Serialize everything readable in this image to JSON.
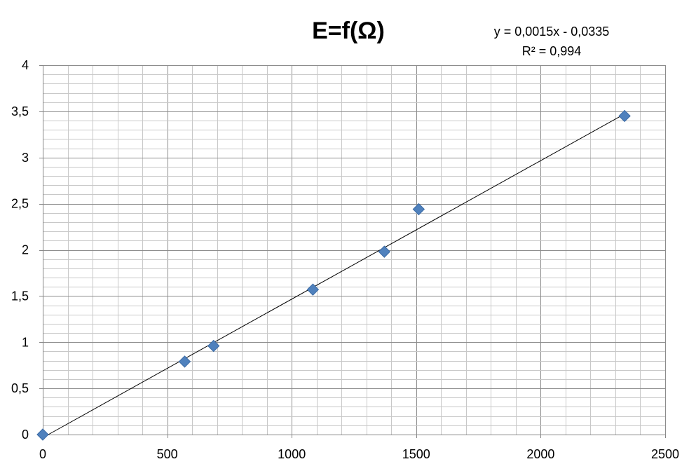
{
  "chart_data": {
    "type": "scatter",
    "title": "E=f(Ω)",
    "xlabel": "",
    "ylabel": "",
    "xlim": [
      0,
      2500
    ],
    "ylim": [
      0,
      4
    ],
    "x_ticks": [
      0,
      500,
      1000,
      1500,
      2000,
      2500
    ],
    "y_ticks": [
      0,
      0.5,
      1,
      1.5,
      2,
      2.5,
      3,
      3.5,
      4
    ],
    "x_tick_labels": [
      "0",
      "500",
      "1000",
      "1500",
      "2000",
      "2500"
    ],
    "y_tick_labels": [
      "0",
      "0,5",
      "1",
      "1,5",
      "2",
      "2,5",
      "3",
      "3,5",
      "4"
    ],
    "grid": true,
    "legend": "none",
    "series": [
      {
        "points": [
          {
            "x": 0,
            "y": 0
          },
          {
            "x": 570,
            "y": 0.79
          },
          {
            "x": 686,
            "y": 0.96
          },
          {
            "x": 1085,
            "y": 1.57
          },
          {
            "x": 1372,
            "y": 1.98
          },
          {
            "x": 1510,
            "y": 2.44
          },
          {
            "x": 2337,
            "y": 3.45
          }
        ],
        "marker_color": "#4f81bd"
      }
    ],
    "trendline": {
      "type": "linear",
      "slope": 0.0015,
      "intercept": -0.0335,
      "x_range": [
        0,
        2337
      ],
      "equation_label": "y = 0,0015x - 0,0335",
      "r2_label": "R² = 0,994"
    }
  }
}
